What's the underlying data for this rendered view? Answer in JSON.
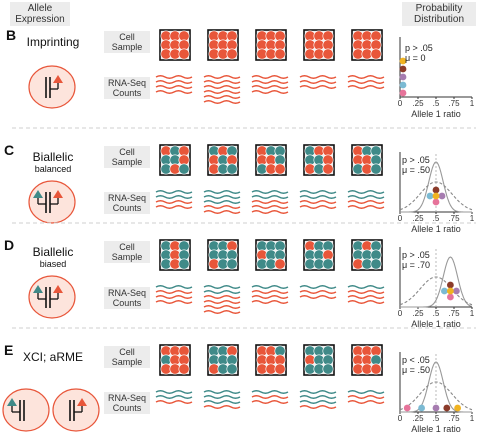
{
  "headers": {
    "allele_expression": [
      "Allele",
      "Expression"
    ],
    "probability_distribution": [
      "Probability",
      "Distribution"
    ]
  },
  "colors": {
    "maternal": "#e8563a",
    "paternal": "#3f8a88",
    "cell_bg": "#eeeeee",
    "dot_colors": [
      "#e6739a",
      "#7bbad3",
      "#a67cb0",
      "#8b3b2a",
      "#f0b321"
    ]
  },
  "row_labels": {
    "cell_sample": [
      "Cell",
      "Sample"
    ],
    "rnaseq_counts": [
      "RNA-Seq",
      "Counts"
    ]
  },
  "axis": {
    "label": "Allele 1 ratio",
    "ticks": [
      "0",
      ".25",
      ".5",
      ".75",
      "1"
    ]
  },
  "panels": [
    {
      "letter": "B",
      "title": "Imprinting",
      "subtitle": "",
      "stats": [
        "p > .05",
        "μ = 0"
      ],
      "cells": [
        [
          1,
          1,
          1,
          1,
          1,
          1,
          1,
          1,
          1
        ],
        [
          1,
          1,
          1,
          1,
          1,
          1,
          1,
          1,
          1
        ],
        [
          1,
          1,
          1,
          1,
          1,
          1,
          1,
          1,
          1
        ],
        [
          1,
          1,
          1,
          1,
          1,
          1,
          1,
          1,
          1
        ],
        [
          1,
          1,
          1,
          1,
          1,
          1,
          1,
          1,
          1
        ]
      ],
      "reads": [
        [
          4,
          0
        ],
        [
          6,
          0
        ],
        [
          4,
          0
        ],
        [
          3,
          0
        ],
        [
          3,
          0
        ]
      ],
      "dots": [
        0,
        0,
        0,
        0,
        0
      ],
      "curve_mean": null
    },
    {
      "letter": "C",
      "title": "Biallelic",
      "subtitle": "balanced",
      "stats": [
        "p > .05",
        "μ = .50"
      ],
      "cells": [
        [
          1,
          2,
          1,
          2,
          2,
          1,
          2,
          1,
          2
        ],
        [
          2,
          1,
          2,
          1,
          2,
          1,
          1,
          2,
          2
        ],
        [
          1,
          2,
          2,
          1,
          1,
          2,
          2,
          1,
          1
        ],
        [
          2,
          1,
          1,
          2,
          2,
          1,
          1,
          2,
          1
        ],
        [
          1,
          2,
          2,
          1,
          1,
          2,
          2,
          1,
          2
        ]
      ],
      "reads": [
        [
          2,
          2
        ],
        [
          2,
          3
        ],
        [
          3,
          2
        ],
        [
          2,
          2
        ],
        [
          2,
          2
        ]
      ],
      "dots": [
        0.5,
        0.5,
        0.5,
        0.5,
        0.5
      ],
      "curve_mean": 0.5
    },
    {
      "letter": "D",
      "title": "Biallelic",
      "subtitle": "biased",
      "stats": [
        "p > .05",
        "μ = .70"
      ],
      "cells": [
        [
          2,
          1,
          2,
          2,
          1,
          2,
          2,
          1,
          2
        ],
        [
          2,
          2,
          1,
          2,
          2,
          2,
          1,
          2,
          2
        ],
        [
          2,
          2,
          2,
          1,
          2,
          2,
          2,
          2,
          1
        ],
        [
          1,
          2,
          2,
          2,
          2,
          1,
          2,
          2,
          2
        ],
        [
          2,
          1,
          2,
          2,
          2,
          2,
          1,
          2,
          2
        ]
      ],
      "reads": [
        [
          3,
          1
        ],
        [
          4,
          2
        ],
        [
          3,
          1
        ],
        [
          2,
          1
        ],
        [
          3,
          1
        ]
      ],
      "dots": [
        0.7,
        0.7,
        0.7,
        0.7,
        0.7
      ],
      "curve_mean": 0.7
    },
    {
      "letter": "E",
      "title": "XCI; aRME",
      "subtitle": "",
      "stats": [
        "p < .05",
        "μ = .50"
      ],
      "cells": [
        [
          1,
          1,
          1,
          2,
          1,
          1,
          1,
          1,
          1
        ],
        [
          2,
          2,
          1,
          2,
          2,
          2,
          1,
          2,
          2
        ],
        [
          1,
          1,
          2,
          1,
          1,
          1,
          1,
          1,
          1
        ],
        [
          2,
          2,
          2,
          1,
          2,
          2,
          2,
          2,
          2
        ],
        [
          1,
          1,
          1,
          1,
          1,
          2,
          1,
          1,
          1
        ]
      ],
      "reads": [
        [
          1,
          2
        ],
        [
          1,
          3
        ],
        [
          2,
          1
        ],
        [
          1,
          3
        ],
        [
          2,
          1
        ]
      ],
      "dots": [
        0.1,
        0.3,
        0.5,
        0.65,
        0.8
      ],
      "curve_mean": 0.5
    }
  ]
}
